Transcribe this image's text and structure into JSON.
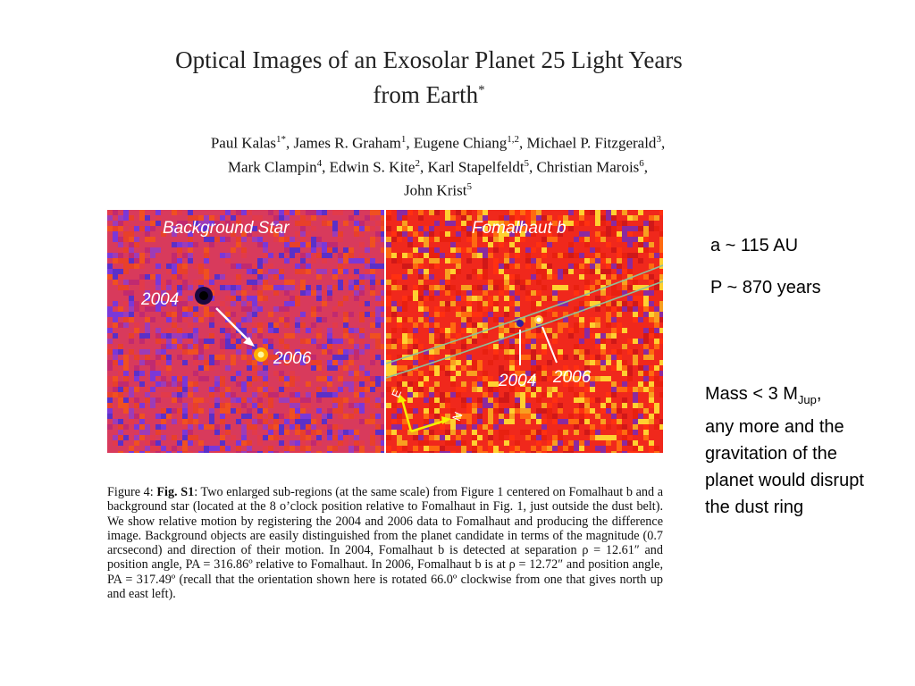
{
  "paper": {
    "title_line1": "Optical Images of an Exosolar Planet 25 Light Years",
    "title_line2": "from Earth",
    "title_mark": "*",
    "authors": [
      {
        "name": "Paul Kalas",
        "aff": "1*",
        "sep": ", "
      },
      {
        "name": "James R. Graham",
        "aff": "1",
        "sep": ", "
      },
      {
        "name": "Eugene Chiang",
        "aff": "1,2",
        "sep": ", "
      },
      {
        "name": "Michael P. Fitzgerald",
        "aff": "3",
        "sep": ","
      },
      {
        "name": "Mark Clampin",
        "aff": "4",
        "sep": ", "
      },
      {
        "name": "Edwin S. Kite",
        "aff": "2",
        "sep": ", "
      },
      {
        "name": "Karl Stapelfeldt",
        "aff": "5",
        "sep": ", "
      },
      {
        "name": "Christian Marois",
        "aff": "6",
        "sep": ","
      },
      {
        "name": "John Krist",
        "aff": "5",
        "sep": ""
      }
    ]
  },
  "figure": {
    "left_panel": {
      "title": "Background Star",
      "label_2004": "2004",
      "label_2006": "2006"
    },
    "right_panel": {
      "title": "Fomalhaut b",
      "label_2004": "2004",
      "label_2006": "2006",
      "compass_e": "E",
      "compass_n": "N"
    },
    "colors": {
      "left_bg": "#d83a5c",
      "right_bg": "#f0281c",
      "label": "#ffffff",
      "ring": "#8fbf9a",
      "compass": "#f5f000"
    }
  },
  "side_notes": {
    "semi_major_axis": "a ~ 115 AU",
    "period": "P ~ 870 years",
    "mass_prefix": "Mass < 3 M",
    "mass_sub": "Jup",
    "mass_suffix": ",",
    "mass_rest": "any more and the gravitation of the planet would disrupt the dust ring"
  },
  "caption": {
    "figure_label": "Figure 4:",
    "fig_ref": "Fig.",
    "fig_id": "S1",
    "text": ": Two enlarged sub-regions (at the same scale) from Figure 1 centered on Fomalhaut b and a background star (located at the 8 o’clock position relative to Fomalhaut in Fig. 1, just outside the dust belt). We show relative motion by registering the 2004 and 2006 data to Fomalhaut and producing the difference image. Background objects are easily distinguished from the planet candidate in terms of the magnitude (0.7 arcsecond) and direction of their motion. In 2004, Fomalhaut b is detected at separation ρ = 12.61″ and position angle, PA = 316.86º relative to Fomalhaut. In 2006, Fomalhaut b is at ρ = 12.72″ and position angle, PA = 317.49º (recall that the orientation shown here is rotated 66.0º clockwise from one that gives north up and east left)."
  }
}
